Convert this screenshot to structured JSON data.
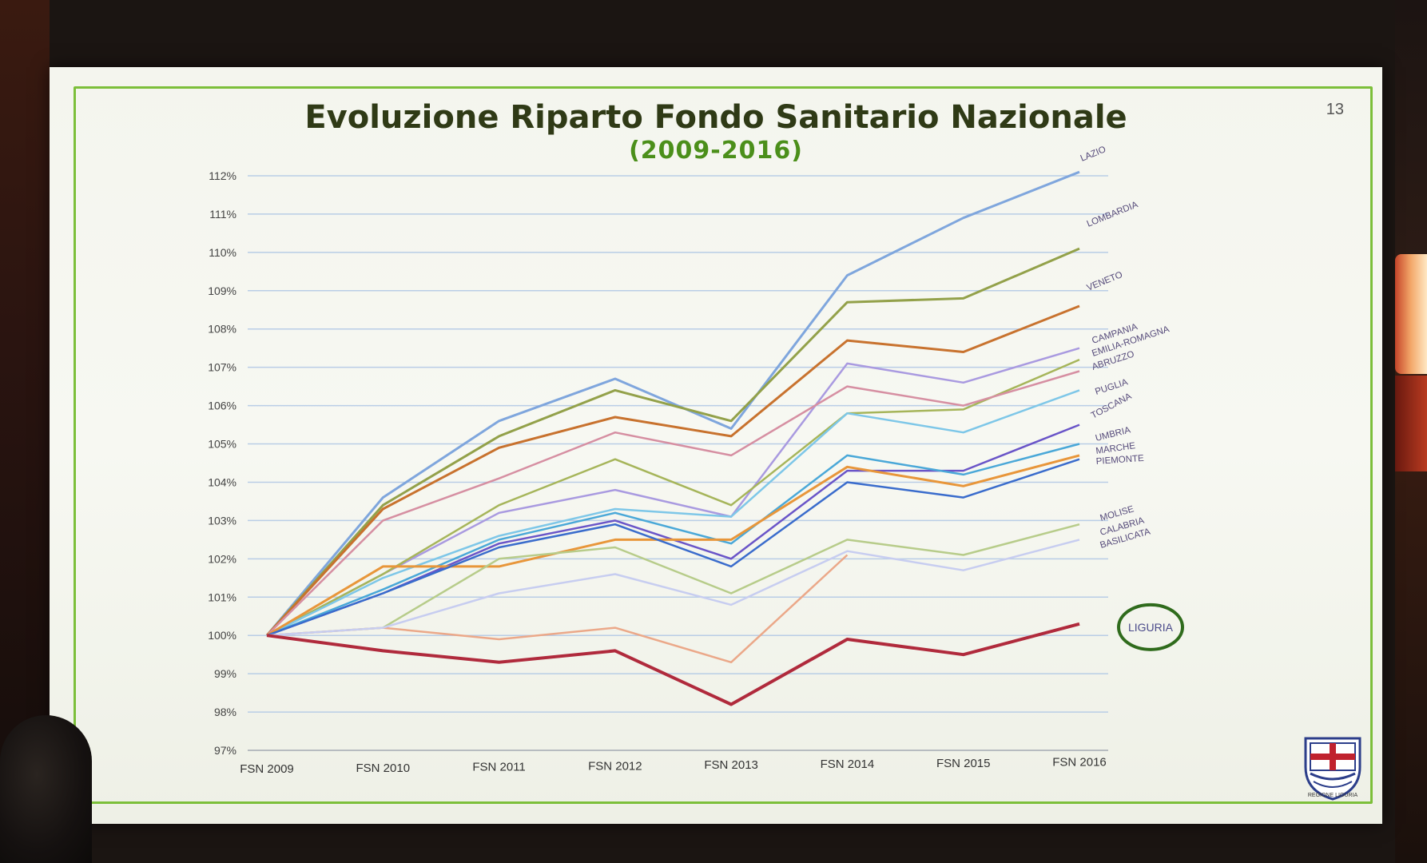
{
  "slide": {
    "title": "Evoluzione Riparto Fondo Sanitario Nazionale",
    "subtitle": "(2009-2016)",
    "page_number": "13",
    "logo_caption": "REGIONE LIGURIA"
  },
  "colors": {
    "frame": "#7cbf3a",
    "title": "#2f3a16",
    "subtitle": "#4b8f1a",
    "highlight_circle": "#2f6b1c",
    "gridline": "#b9cde6"
  },
  "chart_data": {
    "type": "line",
    "categories": [
      "FSN 2009",
      "FSN 2010",
      "FSN 2011",
      "FSN 2012",
      "FSN 2013",
      "FSN 2014",
      "FSN 2015",
      "FSN 2016"
    ],
    "ylim": [
      97,
      112
    ],
    "yticks": [
      "97%",
      "98%",
      "99%",
      "100%",
      "101%",
      "102%",
      "103%",
      "104%",
      "105%",
      "106%",
      "107%",
      "108%",
      "109%",
      "110%",
      "111%",
      "112%"
    ],
    "grid": true,
    "highlight": "LIGURIA",
    "series": [
      {
        "name": "LAZIO",
        "color": "#7fa6dd",
        "width": 3,
        "values": [
          100,
          103.6,
          105.6,
          106.7,
          105.4,
          109.4,
          110.9,
          112.1
        ]
      },
      {
        "name": "LOMBARDIA",
        "color": "#93a14a",
        "width": 3,
        "values": [
          100,
          103.4,
          105.2,
          106.4,
          105.6,
          108.7,
          108.8,
          110.1
        ]
      },
      {
        "name": "VENETO",
        "color": "#c8722e",
        "width": 3,
        "values": [
          100,
          103.3,
          104.9,
          105.7,
          105.2,
          107.7,
          107.4,
          108.6
        ]
      },
      {
        "name": "CAMPANIA",
        "color": "#a99ae0",
        "width": 2.5,
        "values": [
          100,
          101.6,
          103.2,
          103.8,
          103.1,
          107.1,
          106.6,
          107.5
        ]
      },
      {
        "name": "EMILIA-ROMAGNA",
        "color": "#a6b55a",
        "width": 2.5,
        "values": [
          100,
          101.6,
          103.4,
          104.6,
          103.4,
          105.8,
          105.9,
          107.2
        ]
      },
      {
        "name": "ABRUZZO",
        "color": "#d68fa2",
        "width": 2.5,
        "values": [
          100,
          103.0,
          104.1,
          105.3,
          104.7,
          106.5,
          106.0,
          106.9
        ]
      },
      {
        "name": "PUGLIA",
        "color": "#7ec7e8",
        "width": 2.5,
        "values": [
          100,
          101.5,
          102.6,
          103.3,
          103.1,
          105.8,
          105.3,
          106.4
        ]
      },
      {
        "name": "TOSCANA",
        "color": "#6a55c8",
        "width": 2.5,
        "values": [
          100,
          101.1,
          102.4,
          103.0,
          102.0,
          104.3,
          104.3,
          105.5
        ]
      },
      {
        "name": "UMBRIA",
        "color": "#4aa8d8",
        "width": 2.5,
        "values": [
          100,
          101.2,
          102.5,
          103.2,
          102.4,
          104.7,
          104.2,
          105.0
        ]
      },
      {
        "name": "MARCHE",
        "color": "#e8963a",
        "width": 3,
        "values": [
          100,
          101.8,
          101.8,
          102.5,
          102.5,
          104.4,
          103.9,
          104.7
        ]
      },
      {
        "name": "PIEMONTE",
        "color": "#3a6ccc",
        "width": 2.5,
        "values": [
          100,
          101.1,
          102.3,
          102.9,
          101.8,
          104.0,
          103.6,
          104.6
        ]
      },
      {
        "name": "MOLISE",
        "color": "#b7cc8a",
        "width": 2.5,
        "values": [
          100,
          100.2,
          102.0,
          102.3,
          101.1,
          102.5,
          102.1,
          102.9
        ]
      },
      {
        "name": "CALABRIA",
        "color": "#eba889",
        "width": 2.5,
        "values": [
          100,
          100.2,
          99.9,
          100.2,
          99.3,
          102.1,
          null,
          null
        ]
      },
      {
        "name": "BASILICATA",
        "color": "#c7cdf0",
        "width": 2.5,
        "values": [
          100,
          100.2,
          101.1,
          101.6,
          100.8,
          102.2,
          101.7,
          102.5
        ]
      },
      {
        "name": "LIGURIA",
        "color": "#b02a3c",
        "width": 4,
        "values": [
          100,
          99.6,
          99.3,
          99.6,
          98.2,
          99.9,
          99.5,
          100.3
        ]
      }
    ],
    "labels": [
      "LAZIO",
      "LOMBARDIA",
      "VENETO",
      "CAMPANIA",
      "EMILIA-ROMAGNA",
      "ABRUZZO",
      "PUGLIA",
      "TOSCANA",
      "UMBRIA",
      "MARCHE",
      "PIEMONTE",
      "MOLISE",
      "CALABRIA",
      "BASILICATA",
      "LIGURIA"
    ]
  }
}
